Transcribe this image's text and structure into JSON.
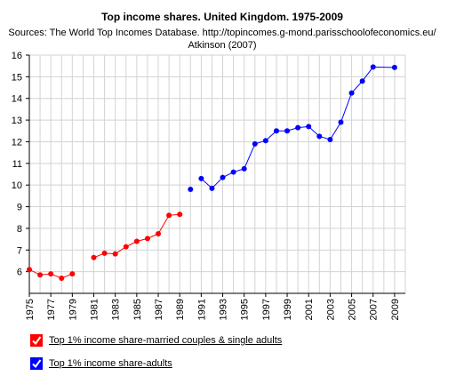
{
  "chart_data": {
    "type": "line",
    "title": "Top income shares. United Kingdom. 1975-2009",
    "subtitle_line1": "Sources: The World Top Incomes Database. http://topincomes.g-mond.parisschoolofeconomics.eu/",
    "subtitle_line2": "Atkinson (2007)",
    "xlim": [
      1975,
      2010
    ],
    "ylim": [
      5,
      16
    ],
    "grid": true,
    "x_ticks": [
      "1975",
      "1977",
      "1979",
      "1981",
      "1983",
      "1985",
      "1987",
      "1989",
      "1991",
      "1993",
      "1995",
      "1997",
      "1999",
      "2001",
      "2003",
      "2005",
      "2007",
      "2009"
    ],
    "y_ticks": [
      "6",
      "7",
      "8",
      "9",
      "10",
      "11",
      "12",
      "13",
      "14",
      "15",
      "16"
    ],
    "series": [
      {
        "name": "Top 1% income share-married couples & single adults",
        "color": "#ff0000",
        "segments": [
          [
            [
              1975,
              6.1
            ],
            [
              1976,
              5.85
            ],
            [
              1977,
              5.9
            ],
            [
              1978,
              5.7
            ],
            [
              1979,
              5.9
            ]
          ],
          [
            [
              1981,
              6.65
            ],
            [
              1982,
              6.85
            ],
            [
              1983,
              6.82
            ],
            [
              1984,
              7.15
            ],
            [
              1985,
              7.4
            ],
            [
              1986,
              7.53
            ],
            [
              1987,
              7.75
            ],
            [
              1988,
              8.6
            ],
            [
              1989,
              8.65
            ]
          ]
        ]
      },
      {
        "name": "Top 1% income share-adults",
        "color": "#0000ff",
        "segments": [
          [
            [
              1990,
              9.8
            ]
          ],
          [
            [
              1991,
              10.3
            ],
            [
              1992,
              9.85
            ],
            [
              1993,
              10.35
            ],
            [
              1994,
              10.6
            ],
            [
              1995,
              10.75
            ],
            [
              1996,
              11.9
            ],
            [
              1997,
              12.05
            ],
            [
              1998,
              12.5
            ],
            [
              1999,
              12.5
            ],
            [
              2000,
              12.65
            ],
            [
              2001,
              12.7
            ],
            [
              2002,
              12.25
            ],
            [
              2003,
              12.1
            ],
            [
              2004,
              12.9
            ],
            [
              2005,
              14.25
            ],
            [
              2006,
              14.8
            ],
            [
              2007,
              15.45
            ],
            [
              2009,
              15.43
            ]
          ]
        ]
      }
    ]
  },
  "legend": {
    "items": [
      {
        "label": "Top 1% income share-married couples & single adults",
        "color": "#ff0000"
      },
      {
        "label": "Top 1% income share-adults",
        "color": "#0000ff"
      }
    ]
  }
}
